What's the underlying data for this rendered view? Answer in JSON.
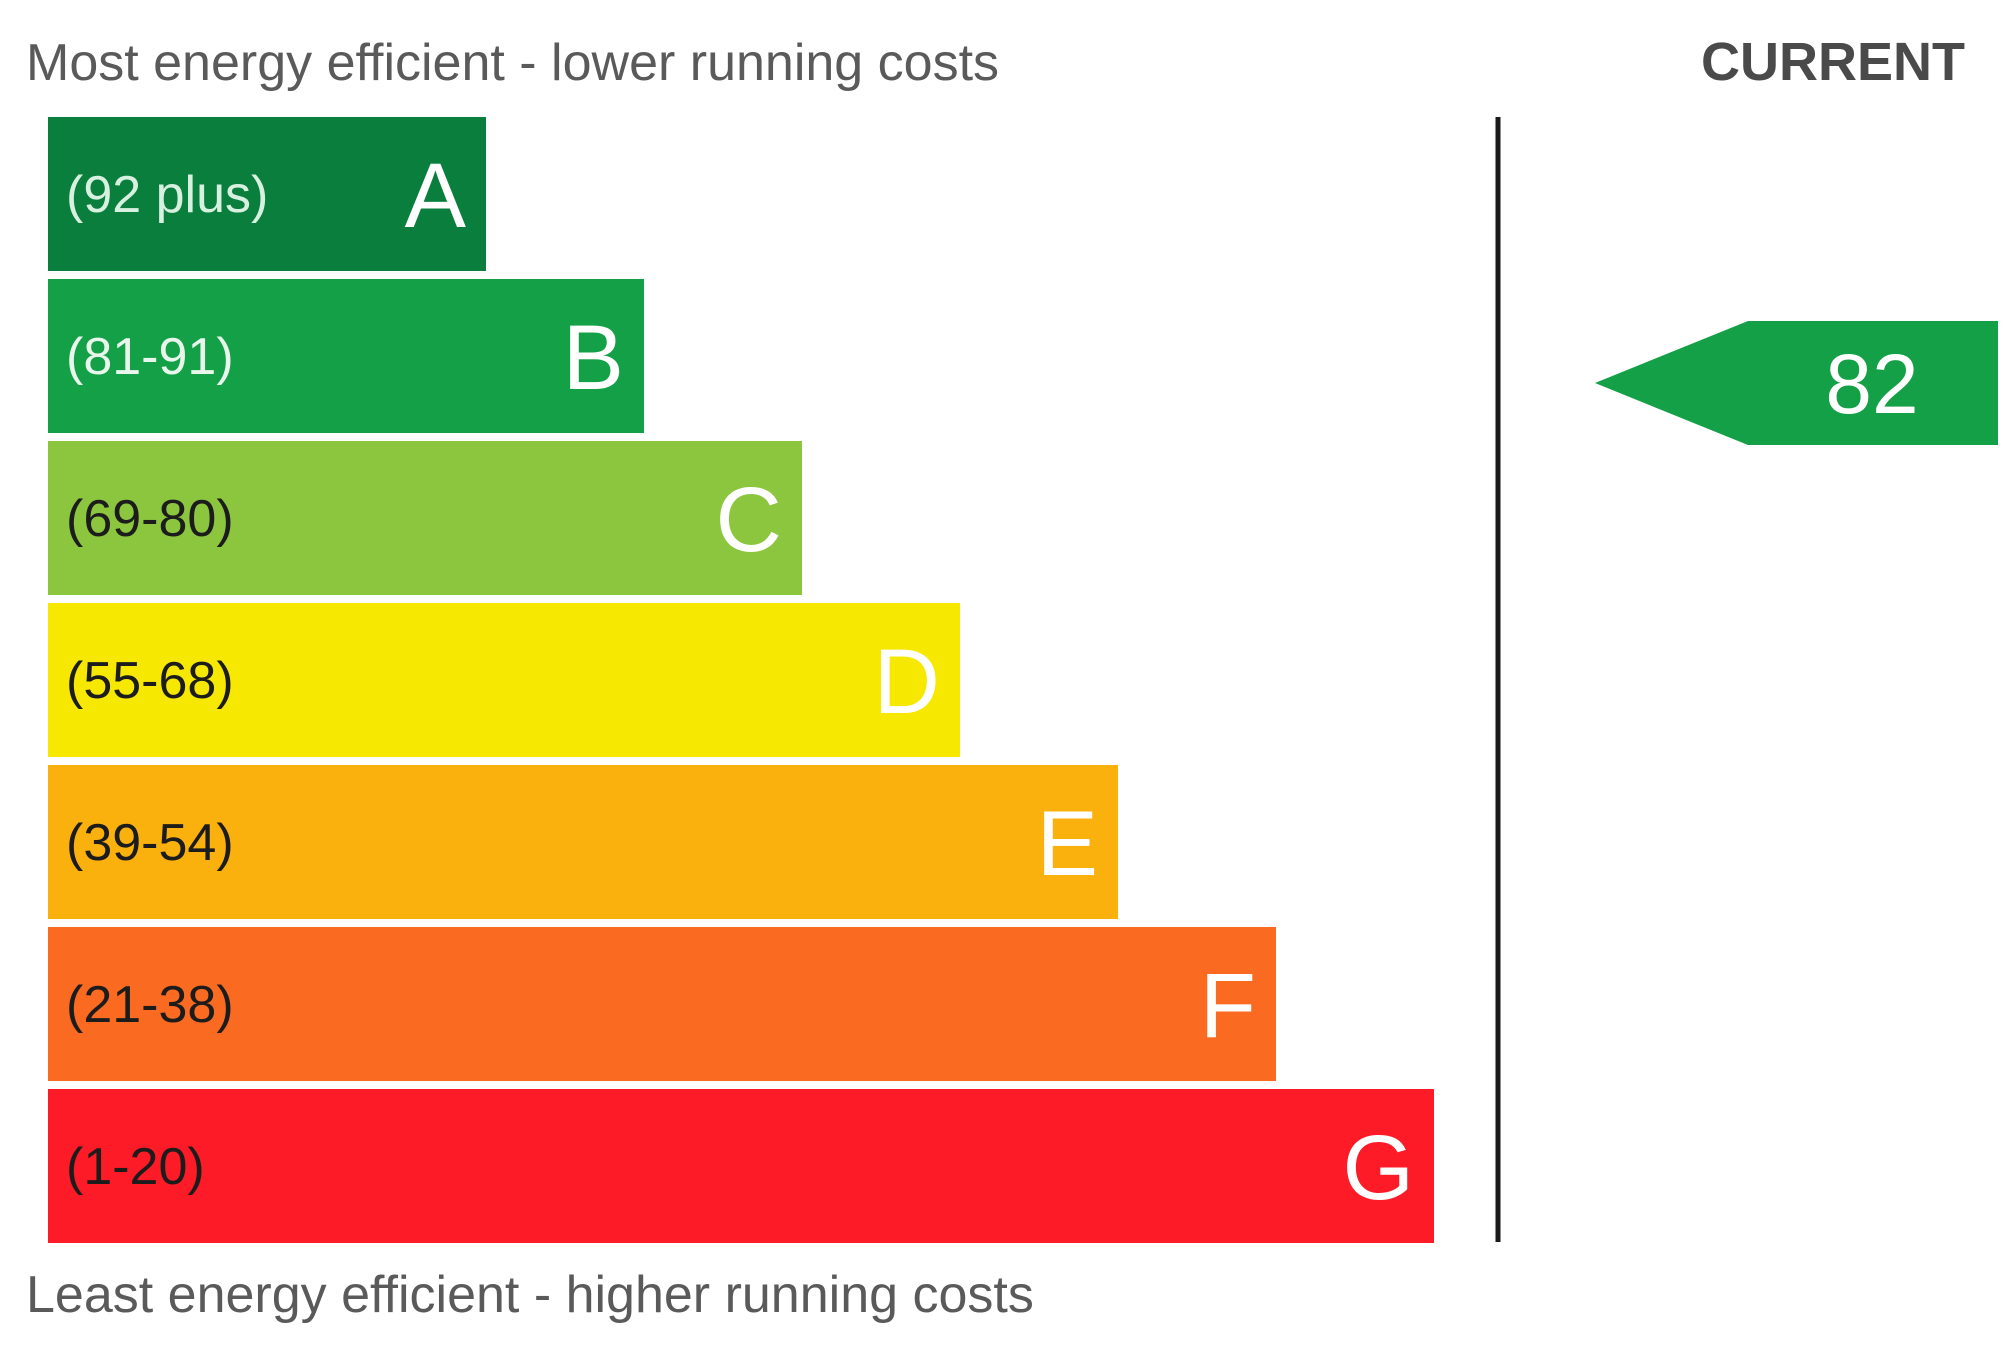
{
  "chart_data": {
    "type": "bar",
    "top_caption": "Most energy efficient - lower running costs",
    "bottom_caption": "Least energy efficient - higher running costs",
    "current_header": "CURRENT",
    "bands": [
      {
        "range": "(92 plus)",
        "letter": "A",
        "color": "#0a7f3d",
        "label_color": "#d8f0e0"
      },
      {
        "range": "(81-91)",
        "letter": "B",
        "color": "#14a046",
        "label_color": "#e8f6ec"
      },
      {
        "range": "(69-80)",
        "letter": "C",
        "color": "#8cc63f",
        "label_color": "#1c1c1c"
      },
      {
        "range": "(55-68)",
        "letter": "D",
        "color": "#f6e800",
        "label_color": "#1c1c1c"
      },
      {
        "range": "(39-54)",
        "letter": "E",
        "color": "#fbb10d",
        "label_color": "#1c1c1c"
      },
      {
        "range": "(21-38)",
        "letter": "F",
        "color": "#fb6a21",
        "label_color": "#1c1c1c"
      },
      {
        "range": "(1-20)",
        "letter": "G",
        "color": "#fc1b26",
        "label_color": "#1c1c1c"
      }
    ],
    "current": {
      "value": 82,
      "band": "B",
      "color": "#14a046"
    }
  }
}
